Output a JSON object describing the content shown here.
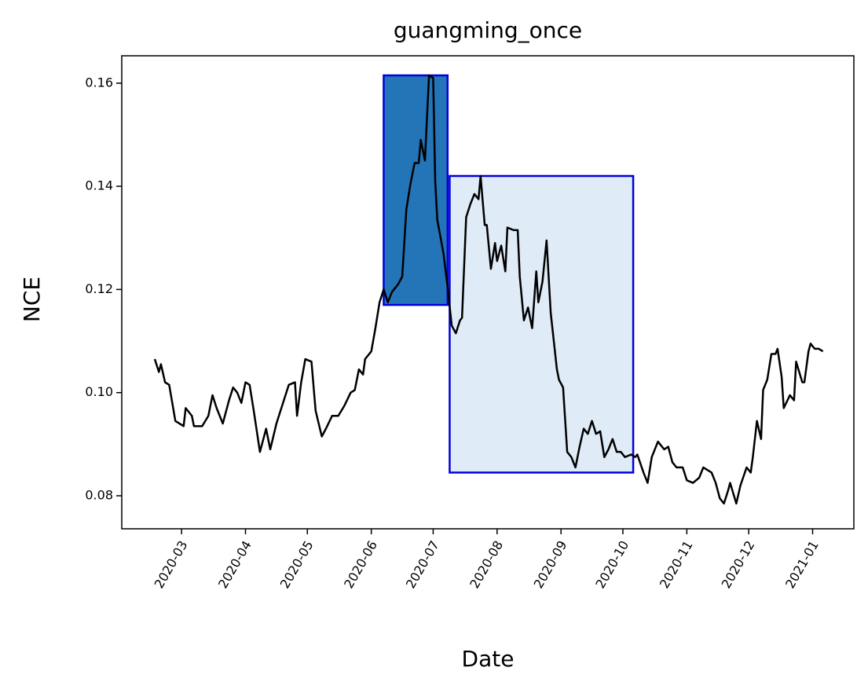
{
  "chart_data": {
    "type": "line",
    "title": "guangming_once",
    "xlabel": "Date",
    "ylabel": "NCE",
    "x": [
      "2020-02-17",
      "2020-02-19",
      "2020-02-20",
      "2020-02-22",
      "2020-02-24",
      "2020-02-27",
      "2020-03-02",
      "2020-03-03",
      "2020-03-06",
      "2020-03-07",
      "2020-03-11",
      "2020-03-14",
      "2020-03-16",
      "2020-03-18",
      "2020-03-21",
      "2020-03-24",
      "2020-03-26",
      "2020-03-28",
      "2020-03-30",
      "2020-04-01",
      "2020-04-03",
      "2020-04-05",
      "2020-04-08",
      "2020-04-11",
      "2020-04-13",
      "2020-04-16",
      "2020-04-18",
      "2020-04-22",
      "2020-04-25",
      "2020-04-26",
      "2020-04-28",
      "2020-04-30",
      "2020-05-03",
      "2020-05-05",
      "2020-05-08",
      "2020-05-10",
      "2020-05-13",
      "2020-05-16",
      "2020-05-19",
      "2020-05-22",
      "2020-05-24",
      "2020-05-26",
      "2020-05-28",
      "2020-05-29",
      "2020-06-01",
      "2020-06-03",
      "2020-06-05",
      "2020-06-07",
      "2020-06-09",
      "2020-06-11",
      "2020-06-14",
      "2020-06-16",
      "2020-06-18",
      "2020-06-20",
      "2020-06-22",
      "2020-06-24",
      "2020-06-25",
      "2020-06-27",
      "2020-06-29",
      "2020-07-01",
      "2020-07-02",
      "2020-07-03",
      "2020-07-06",
      "2020-07-08",
      "2020-07-10",
      "2020-07-12",
      "2020-07-14",
      "2020-07-15",
      "2020-07-17",
      "2020-07-19",
      "2020-07-21",
      "2020-07-23",
      "2020-07-24",
      "2020-07-26",
      "2020-07-27",
      "2020-07-29",
      "2020-07-31",
      "2020-08-01",
      "2020-08-03",
      "2020-08-05",
      "2020-08-06",
      "2020-08-09",
      "2020-08-11",
      "2020-08-12",
      "2020-08-14",
      "2020-08-16",
      "2020-08-18",
      "2020-08-20",
      "2020-08-21",
      "2020-08-23",
      "2020-08-25",
      "2020-08-27",
      "2020-08-30",
      "2020-08-31",
      "2020-09-02",
      "2020-09-04",
      "2020-09-06",
      "2020-09-08",
      "2020-09-10",
      "2020-09-12",
      "2020-09-14",
      "2020-09-16",
      "2020-09-18",
      "2020-09-20",
      "2020-09-22",
      "2020-09-24",
      "2020-09-26",
      "2020-09-28",
      "2020-09-30",
      "2020-10-02",
      "2020-10-05",
      "2020-10-07",
      "2020-10-08",
      "2020-10-11",
      "2020-10-13",
      "2020-10-15",
      "2020-10-18",
      "2020-10-21",
      "2020-10-23",
      "2020-10-25",
      "2020-10-27",
      "2020-10-30",
      "2020-11-01",
      "2020-11-04",
      "2020-11-07",
      "2020-11-09",
      "2020-11-11",
      "2020-11-13",
      "2020-11-15",
      "2020-11-17",
      "2020-11-19",
      "2020-11-21",
      "2020-11-22",
      "2020-11-25",
      "2020-11-27",
      "2020-11-30",
      "2020-12-02",
      "2020-12-03",
      "2020-12-05",
      "2020-12-07",
      "2020-12-08",
      "2020-12-10",
      "2020-12-12",
      "2020-12-14",
      "2020-12-15",
      "2020-12-17",
      "2020-12-18",
      "2020-12-21",
      "2020-12-23",
      "2020-12-24",
      "2020-12-27",
      "2020-12-28",
      "2020-12-30",
      "2020-12-31",
      "2021-01-02",
      "2021-01-04",
      "2021-01-06"
    ],
    "series": [
      {
        "color": "#000000",
        "values": [
          0.1065,
          0.104,
          0.1055,
          0.102,
          0.1015,
          0.0945,
          0.0935,
          0.097,
          0.0955,
          0.0935,
          0.0935,
          0.0955,
          0.0995,
          0.097,
          0.094,
          0.0985,
          0.101,
          0.1,
          0.098,
          0.102,
          0.1015,
          0.0965,
          0.0885,
          0.093,
          0.089,
          0.094,
          0.0965,
          0.1015,
          0.102,
          0.0955,
          0.102,
          0.1065,
          0.106,
          0.0965,
          0.0915,
          0.093,
          0.0955,
          0.0955,
          0.0975,
          0.1,
          0.1005,
          0.1045,
          0.1035,
          0.1065,
          0.108,
          0.1125,
          0.1175,
          0.12,
          0.1175,
          0.1195,
          0.121,
          0.1225,
          0.1355,
          0.1405,
          0.1445,
          0.1445,
          0.149,
          0.145,
          0.1615,
          0.161,
          0.141,
          0.1335,
          0.127,
          0.1205,
          0.113,
          0.1115,
          0.114,
          0.1145,
          0.134,
          0.1365,
          0.1385,
          0.1375,
          0.142,
          0.1325,
          0.1325,
          0.124,
          0.129,
          0.1255,
          0.1285,
          0.1235,
          0.132,
          0.1315,
          0.1315,
          0.1225,
          0.114,
          0.1165,
          0.1125,
          0.1235,
          0.1175,
          0.1215,
          0.1295,
          0.1155,
          0.1045,
          0.1025,
          0.101,
          0.0885,
          0.0875,
          0.0855,
          0.0895,
          0.093,
          0.092,
          0.0945,
          0.092,
          0.0925,
          0.0875,
          0.089,
          0.091,
          0.0885,
          0.0885,
          0.0875,
          0.088,
          0.0875,
          0.088,
          0.0845,
          0.0825,
          0.0875,
          0.0905,
          0.089,
          0.0895,
          0.0865,
          0.0855,
          0.0855,
          0.083,
          0.0825,
          0.0835,
          0.0855,
          0.085,
          0.0845,
          0.0825,
          0.0795,
          0.0785,
          0.081,
          0.0825,
          0.0785,
          0.082,
          0.0855,
          0.0845,
          0.0875,
          0.0945,
          0.091,
          0.1005,
          0.1025,
          0.1075,
          0.1075,
          0.1085,
          0.103,
          0.097,
          0.0995,
          0.0985,
          0.106,
          0.102,
          0.102,
          0.108,
          0.1095,
          0.1085,
          0.1085,
          0.108
        ]
      }
    ],
    "regions": [
      {
        "x": [
          "2020-06-07",
          "2020-07-08"
        ],
        "y": [
          0.117,
          0.1615
        ],
        "color": "#2474b8",
        "edgecolor": "#0000dd"
      },
      {
        "x": [
          "2020-07-09",
          "2020-10-06"
        ],
        "y": [
          0.0845,
          0.142
        ],
        "color": "#dfebf7",
        "edgecolor": "#0000dd"
      }
    ],
    "xlim": [
      "2020-02-01",
      "2021-01-21"
    ],
    "ylim": [
      0.0736,
      0.1653
    ],
    "xticks": [
      {
        "value": "2020-03-01",
        "label": "2020-03"
      },
      {
        "value": "2020-04-01",
        "label": "2020-04"
      },
      {
        "value": "2020-05-01",
        "label": "2020-05"
      },
      {
        "value": "2020-06-01",
        "label": "2020-06"
      },
      {
        "value": "2020-07-01",
        "label": "2020-07"
      },
      {
        "value": "2020-08-01",
        "label": "2020-08"
      },
      {
        "value": "2020-09-01",
        "label": "2020-09"
      },
      {
        "value": "2020-10-01",
        "label": "2020-10"
      },
      {
        "value": "2020-11-01",
        "label": "2020-11"
      },
      {
        "value": "2020-12-01",
        "label": "2020-12"
      },
      {
        "value": "2021-01-01",
        "label": "2021-01"
      }
    ],
    "yticks": [
      {
        "value": 0.08,
        "label": "0.08"
      },
      {
        "value": 0.1,
        "label": "0.10"
      },
      {
        "value": 0.12,
        "label": "0.12"
      },
      {
        "value": 0.14,
        "label": "0.14"
      },
      {
        "value": 0.16,
        "label": "0.16"
      }
    ]
  }
}
